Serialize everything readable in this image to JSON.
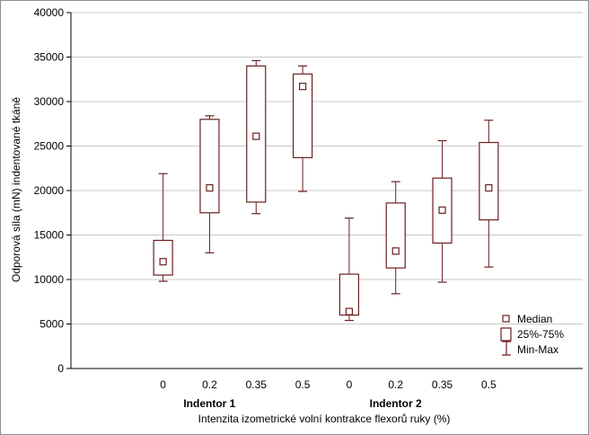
{
  "chart_data": {
    "type": "boxplot",
    "ylabel": "Odporová síla (mN) indentované tkáně",
    "xlabel": "Intenzita izometrické volní kontrakce flexorů ruky (%)",
    "ylim": [
      0,
      40000
    ],
    "yticks": [
      0,
      5000,
      10000,
      15000,
      20000,
      25000,
      30000,
      35000,
      40000
    ],
    "yticklabels": [
      "0",
      "5000",
      "10000",
      "15000",
      "20000",
      "25000",
      "30000",
      "35000",
      "40000"
    ],
    "grid": true,
    "legend_position": "bottom-right",
    "groups": [
      {
        "name": "Indentor 1",
        "categories": [
          "0",
          "0.2",
          "0.35",
          "0.5"
        ],
        "boxes": [
          {
            "median": 12000,
            "q1": 10500,
            "q3": 14400,
            "min": 9800,
            "max": 21900
          },
          {
            "median": 20300,
            "q1": 17500,
            "q3": 28000,
            "min": 13000,
            "max": 28400
          },
          {
            "median": 26100,
            "q1": 18700,
            "q3": 34000,
            "min": 17400,
            "max": 34600
          },
          {
            "median": 31700,
            "q1": 23700,
            "q3": 33100,
            "min": 19900,
            "max": 34000
          }
        ]
      },
      {
        "name": "Indentor 2",
        "categories": [
          "0",
          "0.2",
          "0.35",
          "0.5"
        ],
        "boxes": [
          {
            "median": 6400,
            "q1": 6000,
            "q3": 10600,
            "min": 5400,
            "max": 16900
          },
          {
            "median": 13200,
            "q1": 11300,
            "q3": 18600,
            "min": 8400,
            "max": 21000
          },
          {
            "median": 17800,
            "q1": 14100,
            "q3": 21400,
            "min": 9700,
            "max": 25600
          },
          {
            "median": 20300,
            "q1": 16700,
            "q3": 25400,
            "min": 11400,
            "max": 27900
          }
        ]
      }
    ],
    "legend": [
      "Median",
      "25%-75%",
      "Min-Max"
    ],
    "colors": {
      "box": "#6b1f1f",
      "grid": "#c8c8c8",
      "axis": "#000000",
      "background": "#ffffff"
    }
  }
}
